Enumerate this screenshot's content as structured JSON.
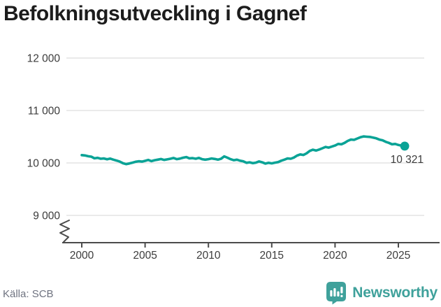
{
  "page": {
    "background": "#ffffff"
  },
  "header": {
    "title": "Befolkningsutveckling i Gagnef"
  },
  "footer": {
    "source": "Källa: SCB",
    "logo_text": "Newsworthy",
    "logo_color": "#3fa19b"
  },
  "chart_data": {
    "type": "line",
    "title": "Befolkningsutveckling i Gagnef",
    "xlabel": "",
    "ylabel": "",
    "source": "SCB",
    "x_ticks": [
      2000,
      2005,
      2010,
      2015,
      2020,
      2025
    ],
    "y_tick_values": [
      12000,
      11000,
      10000,
      9000
    ],
    "y_tick_labels": [
      "12 000",
      "11 000",
      "10 000",
      "9 000"
    ],
    "ylim": [
      9000,
      12000
    ],
    "xlim": [
      2000,
      2025.9
    ],
    "axis_break": true,
    "grid": "horizontal",
    "legend": "none",
    "line_color": "#0aa396",
    "axis_color": "#4b4b4b",
    "grid_color": "#e4e4e4",
    "tick_label_color": "#3c3c3c",
    "end_label": "10 321",
    "end_value": 10321,
    "series": [
      {
        "name": "Befolkning",
        "x": [
          2000,
          2000.25,
          2000.5,
          2000.75,
          2001,
          2001.25,
          2001.5,
          2001.75,
          2002,
          2002.25,
          2002.5,
          2002.75,
          2003,
          2003.25,
          2003.5,
          2003.75,
          2004,
          2004.25,
          2004.5,
          2004.75,
          2005,
          2005.25,
          2005.5,
          2005.75,
          2006,
          2006.25,
          2006.5,
          2006.75,
          2007,
          2007.25,
          2007.5,
          2007.75,
          2008,
          2008.25,
          2008.5,
          2008.75,
          2009,
          2009.25,
          2009.5,
          2009.75,
          2010,
          2010.25,
          2010.5,
          2010.75,
          2011,
          2011.25,
          2011.5,
          2011.75,
          2012,
          2012.25,
          2012.5,
          2012.75,
          2013,
          2013.25,
          2013.5,
          2013.75,
          2014,
          2014.25,
          2014.5,
          2014.75,
          2015,
          2015.25,
          2015.5,
          2015.75,
          2016,
          2016.25,
          2016.5,
          2016.75,
          2017,
          2017.25,
          2017.5,
          2017.75,
          2018,
          2018.25,
          2018.5,
          2018.75,
          2019,
          2019.25,
          2019.5,
          2019.75,
          2020,
          2020.25,
          2020.5,
          2020.75,
          2021,
          2021.25,
          2021.5,
          2021.75,
          2022,
          2022.25,
          2022.5,
          2022.75,
          2023,
          2023.25,
          2023.5,
          2023.75,
          2024,
          2024.25,
          2024.5,
          2024.75,
          2025,
          2025.25,
          2025.5
        ],
        "y": [
          10150,
          10142,
          10128,
          10120,
          10088,
          10097,
          10080,
          10085,
          10070,
          10082,
          10062,
          10045,
          10025,
          9995,
          9978,
          9990,
          10005,
          10022,
          10032,
          10025,
          10040,
          10057,
          10035,
          10052,
          10062,
          10075,
          10057,
          10068,
          10080,
          10094,
          10072,
          10082,
          10100,
          10112,
          10088,
          10092,
          10080,
          10096,
          10072,
          10062,
          10072,
          10086,
          10076,
          10062,
          10080,
          10125,
          10100,
          10072,
          10052,
          10062,
          10042,
          10032,
          10002,
          10012,
          9996,
          10006,
          10030,
          10012,
          9988,
          10002,
          9992,
          10006,
          10016,
          10042,
          10062,
          10086,
          10080,
          10102,
          10140,
          10162,
          10152,
          10182,
          10230,
          10252,
          10236,
          10256,
          10280,
          10306,
          10292,
          10312,
          10332,
          10362,
          10356,
          10382,
          10420,
          10446,
          10440,
          10466,
          10490,
          10506,
          10500,
          10496,
          10482,
          10470,
          10446,
          10432,
          10402,
          10382,
          10356,
          10362,
          10342,
          10330,
          10321
        ]
      }
    ]
  }
}
